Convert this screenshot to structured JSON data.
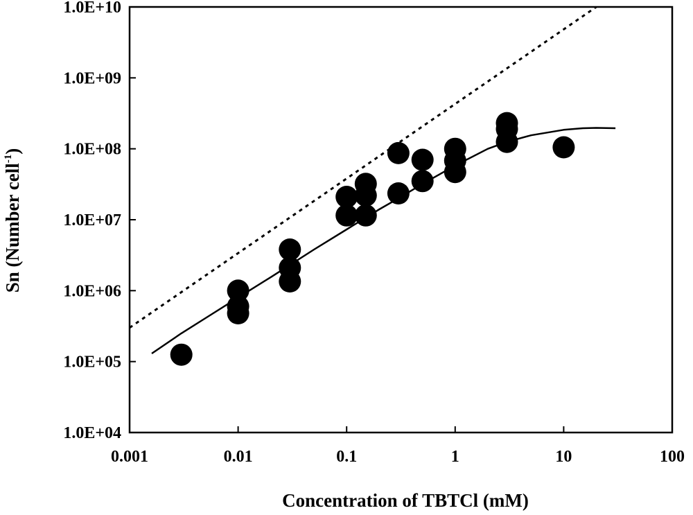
{
  "chart_data": {
    "type": "scatter",
    "title": "",
    "xlabel": "Concentration of TBTCl (mM)",
    "ylabel": {
      "main": "Sn (Number cell",
      "superscript": "-1",
      "close": ")"
    },
    "xscale": "log",
    "yscale": "log",
    "xlim": [
      0.001,
      100
    ],
    "ylim": [
      10000,
      10000000000
    ],
    "grid": false,
    "legend": "none",
    "x_tick_values": [
      0.001,
      0.01,
      0.1,
      1,
      10,
      100
    ],
    "x_tick_labels": [
      "0.001",
      "0.01",
      "0.1",
      "1",
      "10",
      "100"
    ],
    "y_tick_values": [
      10000,
      100000,
      1000000,
      10000000,
      100000000,
      1000000000,
      10000000000
    ],
    "y_tick_labels": [
      "1.0E+04",
      "1.0E+05",
      "1.0E+06",
      "1.0E+07",
      "1.0E+08",
      "1.0E+09",
      "1.0E+10"
    ],
    "series": [
      {
        "type": "scatter",
        "marker": "filled-circle",
        "color": "#000000",
        "points": [
          [
            0.003,
            125000
          ],
          [
            0.01,
            1000000
          ],
          [
            0.01,
            600000
          ],
          [
            0.01,
            480000
          ],
          [
            0.03,
            3800000
          ],
          [
            0.03,
            2100000
          ],
          [
            0.03,
            1350000
          ],
          [
            0.1,
            21000000
          ],
          [
            0.1,
            11500000
          ],
          [
            0.15,
            32000000
          ],
          [
            0.15,
            22000000
          ],
          [
            0.15,
            11500000
          ],
          [
            0.3,
            87000000
          ],
          [
            0.3,
            23500000
          ],
          [
            0.5,
            70000000
          ],
          [
            0.5,
            35000000
          ],
          [
            1,
            100000000
          ],
          [
            1,
            68000000
          ],
          [
            1,
            47000000
          ],
          [
            3,
            230000000
          ],
          [
            3,
            190000000
          ],
          [
            3,
            125000000
          ],
          [
            10,
            105000000
          ]
        ]
      },
      {
        "type": "line",
        "style": "solid",
        "color": "#000000",
        "points": [
          [
            0.0016,
            130000
          ],
          [
            0.003,
            250000
          ],
          [
            0.005,
            410000
          ],
          [
            0.01,
            800000
          ],
          [
            0.02,
            1550000
          ],
          [
            0.03,
            2300000
          ],
          [
            0.05,
            3800000
          ],
          [
            0.1,
            7300000
          ],
          [
            0.2,
            14000000
          ],
          [
            0.3,
            20000000
          ],
          [
            0.5,
            32000000
          ],
          [
            1,
            58000000
          ],
          [
            2,
            100000000
          ],
          [
            3,
            125000000
          ],
          [
            5,
            155000000
          ],
          [
            10,
            185000000
          ],
          [
            15,
            195000000
          ],
          [
            20,
            197000000
          ],
          [
            30,
            195000000
          ]
        ]
      },
      {
        "type": "line",
        "style": "dotted",
        "color": "#000000",
        "points": [
          [
            0.001,
            300000
          ],
          [
            20,
            10000000000
          ]
        ]
      }
    ]
  }
}
